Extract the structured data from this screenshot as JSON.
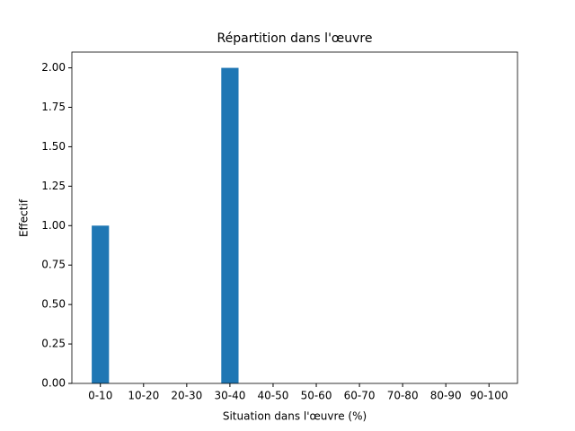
{
  "chart_data": {
    "type": "bar",
    "title": "Répartition dans l'œuvre",
    "x_label": "Situation dans l'œuvre (%)",
    "y_label": "Effectif",
    "categories": [
      "0-10",
      "10-20",
      "20-30",
      "30-40",
      "40-50",
      "50-60",
      "60-70",
      "70-80",
      "80-90",
      "90-100"
    ],
    "values": [
      1,
      0,
      0,
      2,
      0,
      0,
      0,
      0,
      0,
      0
    ],
    "color": "#1f77b4",
    "ylim": [
      0,
      2.1
    ],
    "yticks": [
      {
        "value": 0,
        "label": "0.00"
      },
      {
        "value": 0.25,
        "label": "0.25"
      },
      {
        "value": 0.5,
        "label": "0.50"
      },
      {
        "value": 0.75,
        "label": "0.75"
      },
      {
        "value": 1,
        "label": "1.00"
      },
      {
        "value": 1.25,
        "label": "1.25"
      },
      {
        "value": 1.5,
        "label": "1.50"
      },
      {
        "value": 1.75,
        "label": "1.75"
      },
      {
        "value": 2,
        "label": "2.00"
      }
    ],
    "grid": false
  }
}
